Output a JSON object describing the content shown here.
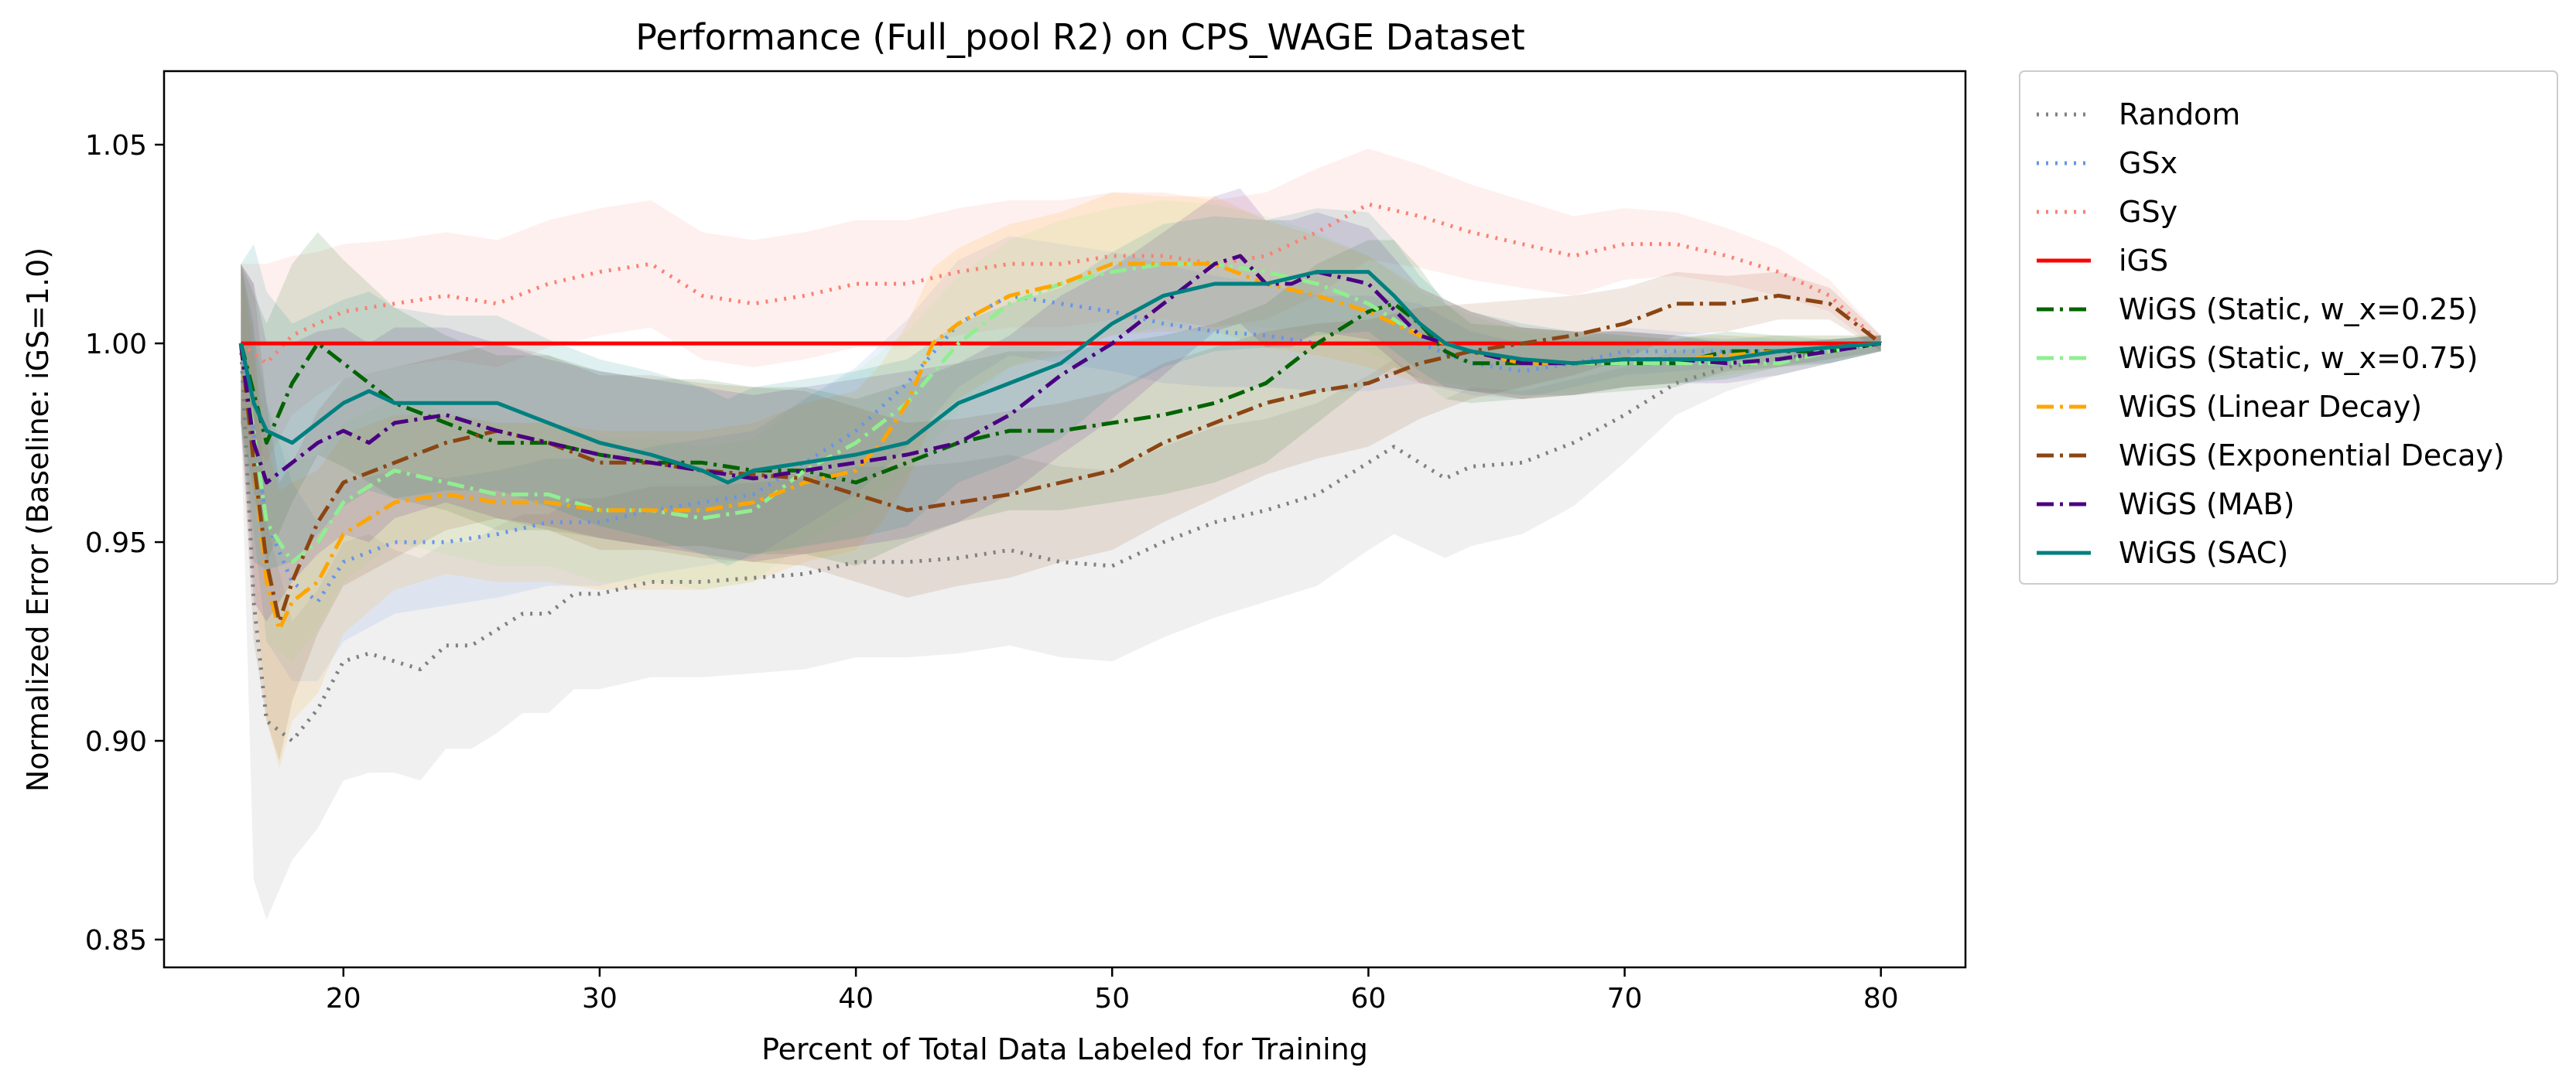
{
  "chart_data": {
    "type": "line",
    "title": "Performance (Full_pool R2) on CPS_WAGE Dataset",
    "xlabel": "Percent of Total Data Labeled for Training",
    "ylabel": "Normalized Error (Baseline: iGS=1.0)",
    "xlim": [
      13,
      83.3
    ],
    "ylim": [
      0.843,
      1.0685
    ],
    "xticks": [
      20,
      30,
      40,
      50,
      60,
      70,
      80
    ],
    "yticks": [
      0.85,
      0.9,
      0.95,
      1.0,
      1.05
    ],
    "xtick_labels": [
      "20",
      "30",
      "40",
      "50",
      "60",
      "70",
      "80"
    ],
    "ytick_labels": [
      "0.85",
      "0.90",
      "0.95",
      "1.00",
      "1.05"
    ],
    "grid": false,
    "legend_position": "outside-right",
    "series": [
      {
        "name": "Random",
        "color": "#808080",
        "dash": "dotted",
        "x": [
          16,
          16.5,
          17,
          18,
          19,
          20,
          21,
          22,
          23,
          24,
          25,
          26,
          27,
          28,
          29,
          30,
          32,
          34,
          36,
          38,
          40,
          42,
          44,
          46,
          48,
          50,
          52,
          54,
          56,
          58,
          60,
          61,
          62,
          63,
          64,
          66,
          68,
          70,
          72,
          74,
          76,
          78,
          80
        ],
        "y": [
          1.0,
          0.935,
          0.905,
          0.9,
          0.908,
          0.92,
          0.922,
          0.92,
          0.918,
          0.924,
          0.924,
          0.928,
          0.932,
          0.932,
          0.937,
          0.937,
          0.94,
          0.94,
          0.941,
          0.942,
          0.945,
          0.945,
          0.946,
          0.948,
          0.945,
          0.944,
          0.95,
          0.955,
          0.958,
          0.962,
          0.97,
          0.974,
          0.97,
          0.966,
          0.969,
          0.97,
          0.975,
          0.982,
          0.99,
          0.994,
          0.996,
          0.998,
          1.0
        ],
        "band": [
          0.02,
          0.07,
          0.05,
          0.03,
          0.03,
          0.03,
          0.03,
          0.028,
          0.028,
          0.026,
          0.026,
          0.026,
          0.025,
          0.025,
          0.024,
          0.024,
          0.024,
          0.024,
          0.024,
          0.024,
          0.024,
          0.024,
          0.024,
          0.024,
          0.024,
          0.024,
          0.024,
          0.024,
          0.023,
          0.023,
          0.022,
          0.022,
          0.021,
          0.02,
          0.02,
          0.018,
          0.016,
          0.012,
          0.008,
          0.006,
          0.004,
          0.003,
          0.002
        ]
      },
      {
        "name": "GSx",
        "color": "#6495ED",
        "dash": "dotted",
        "x": [
          16,
          17,
          18,
          19,
          20,
          22,
          24,
          26,
          28,
          30,
          32,
          34,
          36,
          38,
          40,
          42,
          44,
          46,
          48,
          50,
          52,
          54,
          56,
          58,
          60,
          62,
          64,
          66,
          68,
          70,
          72,
          74,
          76,
          78,
          80
        ],
        "y": [
          1.0,
          0.955,
          0.94,
          0.935,
          0.945,
          0.95,
          0.95,
          0.952,
          0.955,
          0.955,
          0.958,
          0.96,
          0.962,
          0.97,
          0.978,
          0.99,
          1.005,
          1.012,
          1.01,
          1.008,
          1.005,
          1.003,
          1.002,
          1.0,
          1.0,
          1.0,
          0.995,
          0.993,
          0.995,
          0.998,
          0.998,
          0.998,
          0.998,
          0.998,
          1.0
        ],
        "band": [
          0.02,
          0.03,
          0.025,
          0.02,
          0.02,
          0.018,
          0.016,
          0.016,
          0.016,
          0.016,
          0.016,
          0.016,
          0.016,
          0.016,
          0.016,
          0.016,
          0.016,
          0.015,
          0.015,
          0.015,
          0.015,
          0.014,
          0.013,
          0.012,
          0.012,
          0.01,
          0.008,
          0.007,
          0.006,
          0.006,
          0.005,
          0.004,
          0.003,
          0.003,
          0.002
        ]
      },
      {
        "name": "GSy",
        "color": "#FA8072",
        "dash": "dotted",
        "x": [
          16,
          17,
          18,
          19,
          20,
          22,
          24,
          26,
          28,
          30,
          32,
          34,
          36,
          38,
          40,
          42,
          44,
          46,
          48,
          50,
          52,
          54,
          56,
          58,
          60,
          62,
          64,
          66,
          68,
          70,
          72,
          74,
          76,
          78,
          80
        ],
        "y": [
          1.0,
          0.995,
          1.002,
          1.005,
          1.008,
          1.01,
          1.012,
          1.01,
          1.015,
          1.018,
          1.02,
          1.012,
          1.01,
          1.012,
          1.015,
          1.015,
          1.018,
          1.02,
          1.02,
          1.022,
          1.022,
          1.02,
          1.022,
          1.028,
          1.035,
          1.032,
          1.028,
          1.025,
          1.022,
          1.025,
          1.025,
          1.022,
          1.018,
          1.012,
          1.0
        ],
        "band": [
          0.02,
          0.025,
          0.02,
          0.018,
          0.017,
          0.016,
          0.016,
          0.016,
          0.016,
          0.016,
          0.016,
          0.016,
          0.016,
          0.016,
          0.016,
          0.016,
          0.016,
          0.016,
          0.016,
          0.016,
          0.016,
          0.016,
          0.016,
          0.016,
          0.014,
          0.013,
          0.012,
          0.011,
          0.01,
          0.009,
          0.008,
          0.007,
          0.006,
          0.004,
          0.002
        ]
      },
      {
        "name": "iGS",
        "color": "#FF0000",
        "dash": "solid",
        "x": [
          16,
          80
        ],
        "y": [
          1.0,
          1.0
        ],
        "band": [
          0,
          0
        ]
      },
      {
        "name": "WiGS (Static, w_x=0.25)",
        "color": "#006400",
        "dash": "dashdot",
        "x": [
          16,
          17,
          18,
          19,
          20,
          21,
          22,
          24,
          26,
          28,
          30,
          32,
          34,
          36,
          38,
          40,
          42,
          44,
          46,
          48,
          50,
          52,
          54,
          56,
          58,
          60,
          61,
          62,
          63,
          64,
          66,
          68,
          70,
          72,
          74,
          76,
          78,
          80
        ],
        "y": [
          1.0,
          0.975,
          0.99,
          1.0,
          0.995,
          0.99,
          0.985,
          0.98,
          0.975,
          0.975,
          0.972,
          0.97,
          0.97,
          0.968,
          0.968,
          0.965,
          0.97,
          0.975,
          0.978,
          0.978,
          0.98,
          0.982,
          0.985,
          0.99,
          1.0,
          1.008,
          1.01,
          1.005,
          0.998,
          0.995,
          0.995,
          0.995,
          0.995,
          0.995,
          0.998,
          0.998,
          0.998,
          1.0
        ],
        "band": [
          0.02,
          0.03,
          0.03,
          0.028,
          0.026,
          0.025,
          0.024,
          0.022,
          0.022,
          0.022,
          0.021,
          0.021,
          0.021,
          0.021,
          0.021,
          0.021,
          0.02,
          0.02,
          0.02,
          0.02,
          0.02,
          0.02,
          0.02,
          0.02,
          0.02,
          0.018,
          0.016,
          0.014,
          0.012,
          0.01,
          0.009,
          0.008,
          0.007,
          0.006,
          0.005,
          0.004,
          0.003,
          0.002
        ]
      },
      {
        "name": "WiGS (Static, w_x=0.75)",
        "color": "#90EE90",
        "dash": "dashdot",
        "x": [
          16,
          17,
          18,
          19,
          20,
          22,
          24,
          26,
          28,
          30,
          32,
          34,
          36,
          38,
          40,
          42,
          44,
          46,
          48,
          50,
          52,
          54,
          56,
          58,
          60,
          62,
          64,
          66,
          68,
          70,
          72,
          74,
          76,
          78,
          80
        ],
        "y": [
          1.0,
          0.955,
          0.945,
          0.95,
          0.96,
          0.968,
          0.965,
          0.962,
          0.962,
          0.958,
          0.958,
          0.956,
          0.958,
          0.968,
          0.975,
          0.985,
          1.0,
          1.01,
          1.015,
          1.018,
          1.02,
          1.02,
          1.018,
          1.015,
          1.01,
          1.002,
          0.998,
          0.995,
          0.995,
          0.995,
          0.995,
          0.995,
          0.995,
          0.998,
          1.0
        ],
        "band": [
          0.02,
          0.03,
          0.025,
          0.022,
          0.02,
          0.018,
          0.018,
          0.018,
          0.018,
          0.018,
          0.018,
          0.018,
          0.018,
          0.018,
          0.018,
          0.018,
          0.017,
          0.016,
          0.016,
          0.016,
          0.016,
          0.015,
          0.014,
          0.013,
          0.012,
          0.011,
          0.009,
          0.008,
          0.007,
          0.006,
          0.005,
          0.004,
          0.003,
          0.003,
          0.002
        ]
      },
      {
        "name": "WiGS (Linear Decay)",
        "color": "#FFA500",
        "dash": "dashdot",
        "x": [
          16,
          17,
          17.5,
          18,
          19,
          20,
          22,
          24,
          26,
          28,
          30,
          32,
          34,
          36,
          38,
          40,
          41,
          42,
          43,
          44,
          46,
          48,
          50,
          52,
          54,
          56,
          58,
          60,
          62,
          64,
          66,
          68,
          70,
          72,
          74,
          76,
          78,
          80
        ],
        "y": [
          1.0,
          0.94,
          0.928,
          0.935,
          0.94,
          0.952,
          0.96,
          0.962,
          0.96,
          0.96,
          0.958,
          0.958,
          0.958,
          0.96,
          0.965,
          0.968,
          0.975,
          0.985,
          1.0,
          1.005,
          1.012,
          1.015,
          1.02,
          1.02,
          1.02,
          1.015,
          1.012,
          1.008,
          1.002,
          0.998,
          0.995,
          0.995,
          0.996,
          0.996,
          0.997,
          0.998,
          0.999,
          1.0
        ],
        "band": [
          0.02,
          0.035,
          0.035,
          0.03,
          0.028,
          0.025,
          0.022,
          0.02,
          0.02,
          0.02,
          0.02,
          0.02,
          0.02,
          0.02,
          0.02,
          0.02,
          0.02,
          0.02,
          0.019,
          0.019,
          0.018,
          0.018,
          0.018,
          0.017,
          0.017,
          0.016,
          0.015,
          0.014,
          0.012,
          0.01,
          0.009,
          0.008,
          0.007,
          0.006,
          0.005,
          0.004,
          0.003,
          0.002
        ]
      },
      {
        "name": "WiGS (Exponential Decay)",
        "color": "#8B4513",
        "dash": "dashdot",
        "x": [
          16,
          16.5,
          17,
          17.5,
          18,
          19,
          20,
          22,
          24,
          26,
          28,
          30,
          32,
          34,
          36,
          38,
          40,
          42,
          44,
          46,
          48,
          50,
          52,
          54,
          56,
          58,
          60,
          62,
          64,
          66,
          68,
          70,
          72,
          74,
          76,
          78,
          80
        ],
        "y": [
          1.0,
          0.97,
          0.945,
          0.93,
          0.94,
          0.955,
          0.965,
          0.97,
          0.975,
          0.978,
          0.975,
          0.97,
          0.97,
          0.968,
          0.967,
          0.966,
          0.962,
          0.958,
          0.96,
          0.962,
          0.965,
          0.968,
          0.975,
          0.98,
          0.985,
          0.988,
          0.99,
          0.995,
          0.998,
          1.0,
          1.002,
          1.005,
          1.01,
          1.01,
          1.012,
          1.01,
          1.0
        ],
        "band": [
          0.02,
          0.045,
          0.04,
          0.035,
          0.03,
          0.028,
          0.026,
          0.024,
          0.022,
          0.022,
          0.022,
          0.022,
          0.022,
          0.022,
          0.022,
          0.022,
          0.022,
          0.022,
          0.021,
          0.021,
          0.02,
          0.02,
          0.02,
          0.019,
          0.018,
          0.017,
          0.016,
          0.014,
          0.012,
          0.011,
          0.01,
          0.009,
          0.008,
          0.007,
          0.006,
          0.004,
          0.002
        ]
      },
      {
        "name": "WiGS (MAB)",
        "color": "#4B0082",
        "dash": "dashdot",
        "x": [
          16,
          16.5,
          17,
          18,
          19,
          20,
          21,
          22,
          24,
          26,
          28,
          30,
          32,
          34,
          36,
          38,
          40,
          42,
          44,
          46,
          48,
          50,
          52,
          54,
          55,
          56,
          57,
          58,
          60,
          62,
          64,
          66,
          68,
          70,
          72,
          74,
          76,
          78,
          80
        ],
        "y": [
          1.0,
          0.975,
          0.965,
          0.97,
          0.975,
          0.978,
          0.975,
          0.98,
          0.982,
          0.978,
          0.975,
          0.972,
          0.97,
          0.968,
          0.966,
          0.968,
          0.97,
          0.972,
          0.975,
          0.982,
          0.992,
          1.0,
          1.01,
          1.02,
          1.022,
          1.015,
          1.015,
          1.018,
          1.015,
          1.002,
          0.998,
          0.995,
          0.995,
          0.996,
          0.996,
          0.995,
          0.996,
          0.998,
          1.0
        ],
        "band": [
          0.02,
          0.04,
          0.035,
          0.03,
          0.028,
          0.026,
          0.025,
          0.024,
          0.022,
          0.022,
          0.021,
          0.021,
          0.021,
          0.021,
          0.021,
          0.021,
          0.021,
          0.021,
          0.02,
          0.02,
          0.02,
          0.019,
          0.018,
          0.017,
          0.017,
          0.016,
          0.016,
          0.015,
          0.014,
          0.012,
          0.01,
          0.009,
          0.008,
          0.007,
          0.006,
          0.005,
          0.004,
          0.003,
          0.002
        ]
      },
      {
        "name": "WiGS (SAC)",
        "color": "#008080",
        "dash": "solid",
        "x": [
          16,
          16.5,
          17,
          18,
          19,
          20,
          21,
          22,
          24,
          26,
          28,
          30,
          32,
          34,
          35,
          36,
          38,
          40,
          42,
          44,
          46,
          48,
          50,
          52,
          54,
          56,
          58,
          60,
          61,
          62,
          63,
          64,
          66,
          68,
          70,
          72,
          74,
          76,
          78,
          80
        ],
        "y": [
          1.0,
          0.985,
          0.978,
          0.975,
          0.98,
          0.985,
          0.988,
          0.985,
          0.985,
          0.985,
          0.98,
          0.975,
          0.972,
          0.968,
          0.965,
          0.968,
          0.97,
          0.972,
          0.975,
          0.985,
          0.99,
          0.995,
          1.005,
          1.012,
          1.015,
          1.015,
          1.018,
          1.018,
          1.012,
          1.005,
          1.0,
          0.998,
          0.996,
          0.995,
          0.996,
          0.996,
          0.996,
          0.998,
          0.999,
          1.0
        ],
        "band": [
          0.02,
          0.04,
          0.035,
          0.03,
          0.028,
          0.026,
          0.025,
          0.024,
          0.022,
          0.022,
          0.021,
          0.021,
          0.021,
          0.021,
          0.021,
          0.021,
          0.021,
          0.021,
          0.021,
          0.02,
          0.02,
          0.019,
          0.018,
          0.018,
          0.017,
          0.016,
          0.016,
          0.015,
          0.014,
          0.012,
          0.011,
          0.01,
          0.009,
          0.008,
          0.007,
          0.006,
          0.005,
          0.004,
          0.003,
          0.002
        ]
      }
    ]
  }
}
